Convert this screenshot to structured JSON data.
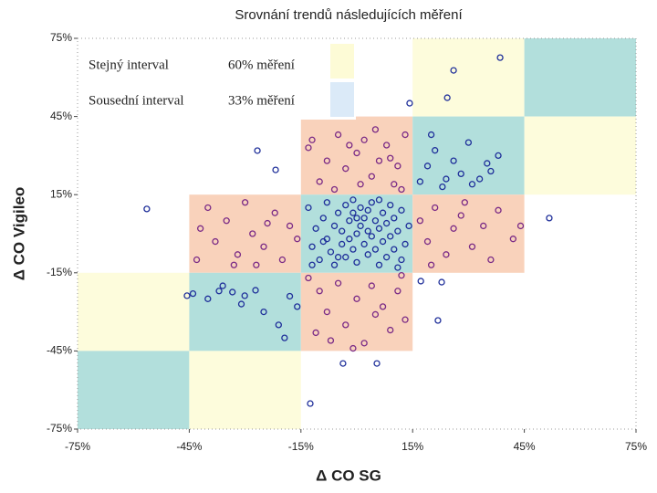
{
  "chart_data": {
    "type": "scatter",
    "title": "Srovnání trendů následujících měření",
    "x_label": "Δ CO SG",
    "y_label": "Δ CO Vigileo",
    "xlim": [
      -75,
      75
    ],
    "ylim": [
      -75,
      75
    ],
    "xticks": [
      {
        "value": -75,
        "label": "-75%"
      },
      {
        "value": -45,
        "label": "-45%"
      },
      {
        "value": -15,
        "label": "-15%"
      },
      {
        "value": 15,
        "label": "15%"
      },
      {
        "value": 45,
        "label": "45%"
      },
      {
        "value": 75,
        "label": "75%"
      }
    ],
    "yticks": [
      {
        "value": -75,
        "label": "-75%"
      },
      {
        "value": -45,
        "label": "-45%"
      },
      {
        "value": -15,
        "label": "-15%"
      },
      {
        "value": 15,
        "label": "15%"
      },
      {
        "value": 45,
        "label": "45%"
      },
      {
        "value": 75,
        "label": "75%"
      }
    ],
    "zone_colors": [
      [
        null,
        null,
        null,
        "#fdfcdc",
        "#b2dfdc"
      ],
      [
        null,
        null,
        "#f9d2bb",
        "#b2dfdc",
        "#fdfcdc"
      ],
      [
        null,
        "#f9d2bb",
        "#b2dfdc",
        "#f9d2bb",
        null
      ],
      [
        "#fdfcdc",
        "#b2dfdc",
        "#f9d2bb",
        null,
        null
      ],
      [
        "#b2dfdc",
        "#fdfcdc",
        null,
        null,
        null
      ]
    ],
    "legend": [
      {
        "name": "Stejný interval",
        "value": "60% měření",
        "color": "#fdfbd6"
      },
      {
        "name": "Sousední interval",
        "value": "33% měření",
        "color": "#dbeaf8"
      }
    ],
    "series": [
      {
        "color": "#1f2f9a",
        "x": [
          38.5,
          26,
          24.3,
          14.2,
          -56.4,
          51.7,
          -45.6,
          -12.5,
          -3.7,
          5.4,
          21.8,
          17.2,
          -19.4,
          -37,
          -33.4,
          -30.1,
          -26.7,
          -21.8,
          -27.2,
          22.8,
          17,
          19,
          21,
          23,
          26,
          28,
          30,
          33,
          35,
          38,
          20,
          24,
          31,
          36,
          -44,
          -40,
          -36,
          -31,
          -25,
          -21,
          -18,
          -16,
          -13,
          -12,
          -11,
          -10,
          -9,
          -8,
          -8,
          -7,
          -6,
          -6,
          -5,
          -4,
          -4,
          -3,
          -3,
          -2,
          -2,
          -1,
          -1,
          0,
          0,
          1,
          1,
          2,
          2,
          3,
          3,
          4,
          4,
          5,
          5,
          6,
          6,
          7,
          7,
          8,
          8,
          9,
          9,
          10,
          10,
          11,
          12,
          12,
          13,
          14,
          -12,
          -9,
          -5,
          0,
          3,
          11,
          -1,
          6
        ],
        "y": [
          67.6,
          62.7,
          52.2,
          50.1,
          9.5,
          6,
          -23.8,
          -65.2,
          -49.8,
          -49.8,
          -33.3,
          -18.2,
          -40,
          -22,
          -22.4,
          -23.8,
          31.9,
          24.5,
          -21.7,
          -18.6,
          20,
          26,
          32,
          18,
          28,
          23,
          35,
          21,
          27,
          30,
          38,
          21,
          19,
          24,
          -23,
          -25,
          -20,
          -27,
          -30,
          -35,
          -24,
          -28,
          10,
          -5,
          2,
          -10,
          6,
          -2,
          12,
          -7,
          3,
          -12,
          8,
          -4,
          1,
          11,
          -9,
          5,
          -2,
          -6,
          8,
          0,
          -11,
          3,
          10,
          -4,
          6,
          -8,
          1,
          12,
          -1,
          5,
          -6,
          -12,
          2,
          8,
          -3,
          -9,
          4,
          11,
          -1,
          -6,
          6,
          1,
          -10,
          9,
          -4,
          3,
          -12,
          -3,
          -9,
          6,
          9,
          -13,
          13,
          13
        ]
      },
      {
        "color": "#7a2a86",
        "x": [
          -13,
          -12,
          -8,
          -5,
          -3,
          0,
          2,
          4,
          6,
          8,
          10,
          11,
          13,
          -10,
          -6,
          1,
          5,
          9,
          -2,
          12,
          -40,
          -38,
          -35,
          -32,
          -30,
          -28,
          -25,
          -22,
          -20,
          -18,
          -16,
          -42,
          -27,
          -24,
          -33,
          -43,
          17,
          19,
          21,
          24,
          26,
          28,
          31,
          34,
          38,
          42,
          20,
          29,
          36,
          44,
          -13,
          -10,
          -8,
          -5,
          -3,
          0,
          2,
          4,
          7,
          9,
          11,
          13,
          -11,
          -7,
          5,
          12,
          -1
        ],
        "y": [
          33,
          36,
          28,
          38,
          25,
          31,
          36,
          22,
          28,
          34,
          19,
          26,
          38,
          20,
          17,
          19,
          40,
          29,
          34,
          17,
          10,
          -3,
          5,
          -8,
          12,
          0,
          -5,
          8,
          -10,
          3,
          -2,
          2,
          -12,
          4,
          -12,
          -10,
          5,
          -3,
          10,
          -8,
          2,
          7,
          -5,
          3,
          9,
          -2,
          -12,
          12,
          -10,
          3,
          -17,
          -22,
          -30,
          -19,
          -35,
          -25,
          -42,
          -20,
          -28,
          -37,
          -22,
          -33,
          -38,
          -41,
          -31,
          -16,
          -44
        ]
      }
    ]
  }
}
